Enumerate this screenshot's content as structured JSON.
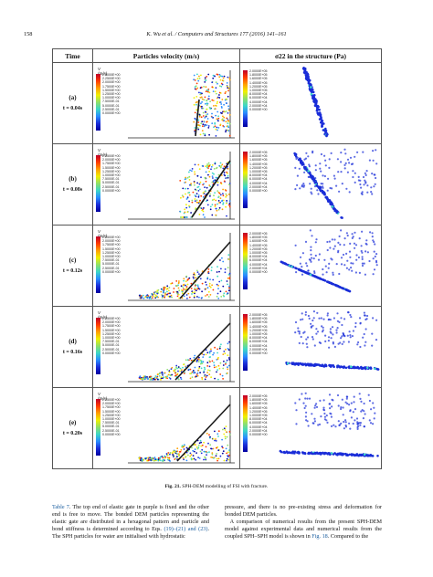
{
  "header": {
    "page_number": "158",
    "journal": "K. Wu et al. / Computers and Structures 177 (2016) 141–161"
  },
  "table": {
    "col_time": "Time",
    "col_velocity": "Particles velocity (m/s)",
    "col_stress": "σ22 in the structure (Pa)",
    "velocity_legend_title": "V (m/s)",
    "velocity_ticks_a": [
      "2.5000E+00",
      "2.2500E+00",
      "2.0000E+00",
      "1.7500E+00",
      "1.5000E+00",
      "1.2500E+00",
      "1.0000E+00",
      "7.5000E-01",
      "5.0000E-01",
      "2.5000E-01",
      "0.0000E+00"
    ],
    "velocity_ticks_b": [
      "2.2500E+00",
      "2.0000E+00",
      "1.7500E+00",
      "1.5000E+00",
      "1.2500E+00",
      "1.0000E+00",
      "7.5000E-01",
      "5.0000E-01",
      "2.5000E-01",
      "0.0000E+00"
    ],
    "stress_ticks": [
      "2.0000E+05",
      "1.8000E+05",
      "1.6000E+05",
      "1.4000E+05",
      "1.2000E+05",
      "1.0000E+05",
      "8.0000E+04",
      "6.0000E+04",
      "4.0000E+04",
      "2.0000E+04",
      "0.0000E+00"
    ],
    "rows": [
      {
        "label": "(a)",
        "time": "t = 0.04s"
      },
      {
        "label": "(b)",
        "time": "t = 0.08s"
      },
      {
        "label": "(c)",
        "time": "t = 0.12s"
      },
      {
        "label": "(d)",
        "time": "t = 0.16s"
      },
      {
        "label": "(e)",
        "time": "t = 0.20s"
      }
    ]
  },
  "caption": {
    "label": "Fig. 21.",
    "text": "SPH-DEM modelling of FSI with fracture."
  },
  "body_left": {
    "ref1": "Table 7",
    "p1": ". The top end of elastic gate in purple is fixed and the other end is free to move. The bonded DEM particles representing the elastic gate are distributed in a hexagonal pattern and particle and bond stiffness is determined according to Eqs. ",
    "ref2": "(19)–(21) and (23)",
    "p2": ". The SPH particles for water are initialised with hydrostatic"
  },
  "body_right": {
    "p1": "pressure, and there is no pre-existing stress and deformation for bonded DEM particles.",
    "p2": "A comparison of numerical results from the present SPH-DEM model against experimental data and numerical results from the coupled SPH–SPH model is shown in ",
    "ref": "Fig. 18",
    "p3": ". Compared to the"
  }
}
